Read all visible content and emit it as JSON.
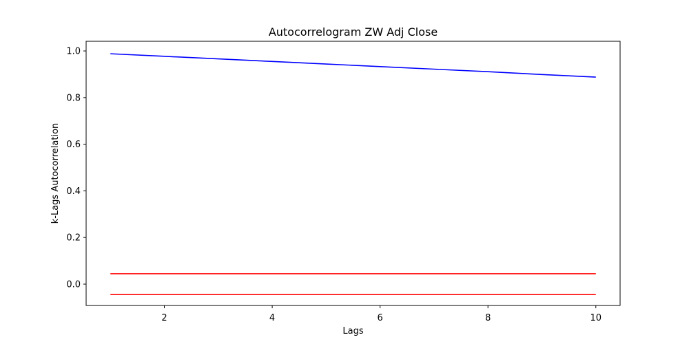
{
  "chart_data": {
    "type": "line",
    "title": "Autocorrelogram ZW Adj Close",
    "xlabel": "Lags",
    "ylabel": "k-Lags Autocorrelation",
    "xlim": [
      0.55,
      10.45
    ],
    "ylim": [
      -0.0915,
      1.0415
    ],
    "xticks": [
      2,
      4,
      6,
      8,
      10
    ],
    "yticks": [
      0.0,
      0.2,
      0.4,
      0.6,
      0.8,
      1.0
    ],
    "xtick_labels": [
      "2",
      "4",
      "6",
      "8",
      "10"
    ],
    "ytick_labels": [
      "0.0",
      "0.2",
      "0.4",
      "0.6",
      "0.8",
      "1.0"
    ],
    "grid": false,
    "series": [
      {
        "color": "#0000ff",
        "x": [
          1,
          2,
          3,
          4,
          5,
          6,
          7,
          8,
          9,
          10
        ],
        "values": [
          0.988,
          0.977,
          0.966,
          0.955,
          0.944,
          0.933,
          0.922,
          0.911,
          0.899,
          0.888
        ]
      },
      {
        "color": "#ff0000",
        "x": [
          1,
          10
        ],
        "values": [
          0.0446,
          0.0446
        ]
      },
      {
        "color": "#ff0000",
        "x": [
          1,
          10
        ],
        "values": [
          -0.0446,
          -0.0446
        ]
      }
    ]
  }
}
